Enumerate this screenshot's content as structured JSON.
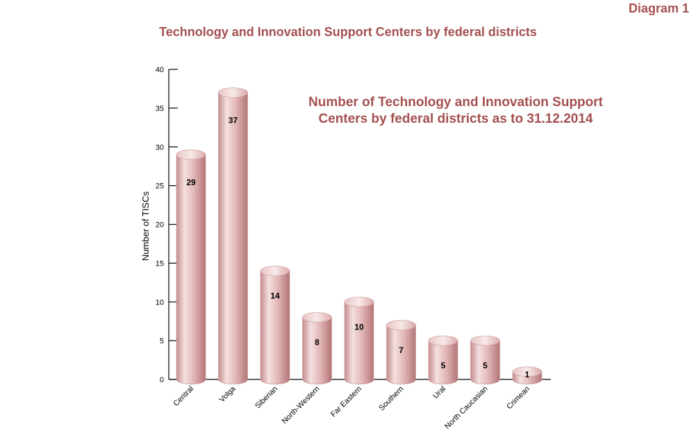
{
  "header": {
    "diagram_label": "Diagram 1",
    "page_title": "Technology and Innovation Support Centers by federal districts"
  },
  "colors": {
    "title": "#a4504f",
    "bar_light": "#f3dcdc",
    "bar_mid": "#dfaeae",
    "bar_dark": "#b57b7d",
    "axis": "#000000"
  },
  "chart_data": {
    "type": "bar",
    "title": "Number of Technology and Innovation Support Centers by federal districts as to 31.12.2014",
    "xlabel": "",
    "ylabel": "Number of TISCs",
    "ylim": [
      0,
      40
    ],
    "yticks": [
      0,
      5,
      10,
      15,
      20,
      25,
      30,
      35,
      40
    ],
    "categories": [
      "Central",
      "Volga",
      "Siberian",
      "North-Western",
      "Far Eastern",
      "Southern",
      "Ural",
      "North Caucasian",
      "Crimean"
    ],
    "values": [
      29,
      37,
      14,
      8,
      10,
      7,
      5,
      5,
      1
    ],
    "data_labels": [
      "29",
      "37",
      "14",
      "8",
      "10",
      "7",
      "5",
      "5",
      "1"
    ],
    "legend": "none",
    "grid": false
  }
}
